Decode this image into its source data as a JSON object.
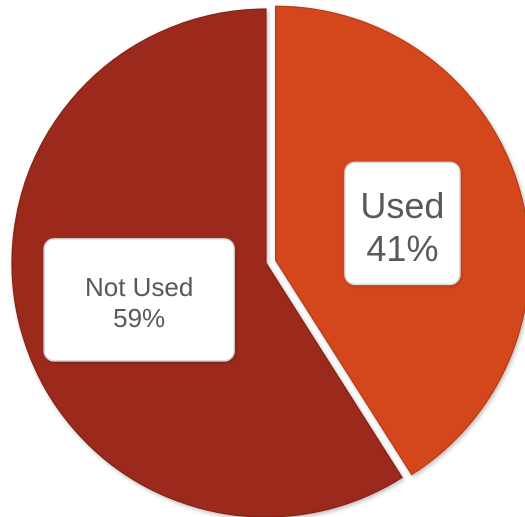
{
  "chart_data": {
    "type": "pie",
    "slices": [
      {
        "label": "Used",
        "value": 41,
        "value_label": "41%",
        "color": "#d4461b",
        "exploded": true
      },
      {
        "label": "Not Used",
        "value": 59,
        "value_label": "59%",
        "color": "#9b2a1d",
        "exploded": false
      }
    ],
    "start_angle_deg": 0,
    "direction": "clockwise",
    "legend": "none"
  }
}
